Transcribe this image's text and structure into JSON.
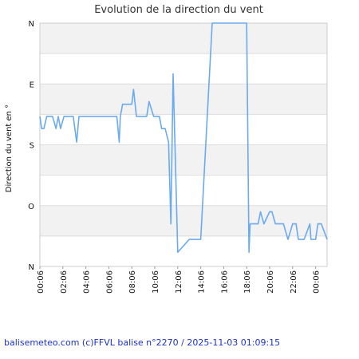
{
  "chart_data": {
    "type": "line",
    "title": "Evolution de la direction du vent",
    "ylabel": "Direction du vent en °",
    "xlabel": "",
    "y_ticks": [
      {
        "label": "N",
        "value": 360
      },
      {
        "label": "E",
        "value": 270
      },
      {
        "label": "S",
        "value": 180
      },
      {
        "label": "O",
        "value": 90
      },
      {
        "label": "N",
        "value": 0
      }
    ],
    "ylim": [
      0,
      360
    ],
    "x_ticks": [
      "00:06",
      "02:06",
      "04:06",
      "06:06",
      "08:06",
      "10:06",
      "12:06",
      "14:06",
      "16:06",
      "18:06",
      "20:06",
      "22:06",
      "00:06"
    ],
    "xlim_hours": [
      0,
      25
    ],
    "grid": true,
    "bands": "alternating light grey every 45°",
    "series": [
      {
        "color": "#6aaaf0",
        "x": [
          0,
          0.15,
          0.35,
          0.6,
          1.1,
          1.4,
          1.6,
          1.8,
          2.1,
          2.9,
          3.2,
          3.4,
          4.0,
          4.5,
          5.0,
          5.5,
          6.0,
          6.2,
          6.5,
          6.7,
          6.9,
          7.0,
          7.2,
          8.0,
          8.15,
          8.4,
          9.0,
          9.3,
          9.5,
          9.9,
          10.2,
          10.4,
          10.6,
          10.8,
          10.9,
          11.2,
          11.4,
          11.6,
          12.0,
          13.0,
          14.0,
          15.0,
          16.0,
          16.3,
          16.5,
          16.8,
          17.0,
          17.2,
          17.5,
          18.0,
          18.2,
          18.3,
          18.5,
          18.7,
          19.0,
          19.2,
          19.5,
          20.0,
          20.2,
          20.5,
          21.0,
          21.2,
          21.6,
          22.0,
          22.3,
          22.5,
          23.0,
          23.5,
          23.6,
          24.0,
          24.2,
          24.5,
          25.0
        ],
        "y": [
          222,
          204,
          204,
          222,
          222,
          204,
          222,
          204,
          222,
          222,
          184,
          222,
          222,
          222,
          222,
          222,
          222,
          222,
          222,
          222,
          184,
          222,
          240,
          240,
          262,
          222,
          222,
          222,
          244,
          222,
          222,
          222,
          204,
          204,
          204,
          184,
          63,
          285,
          21,
          40,
          40,
          360,
          360,
          360,
          360,
          360,
          360,
          360,
          360,
          360,
          21,
          63,
          63,
          63,
          63,
          81,
          63,
          81,
          81,
          63,
          63,
          63,
          40,
          63,
          63,
          40,
          40,
          63,
          40,
          40,
          63,
          63,
          40
        ]
      }
    ]
  },
  "footer": {
    "text": "balisemeteo.com (c)FFVL balise n°2270 / 2025-11-03 01:09:15",
    "color": "#1a33cc"
  }
}
